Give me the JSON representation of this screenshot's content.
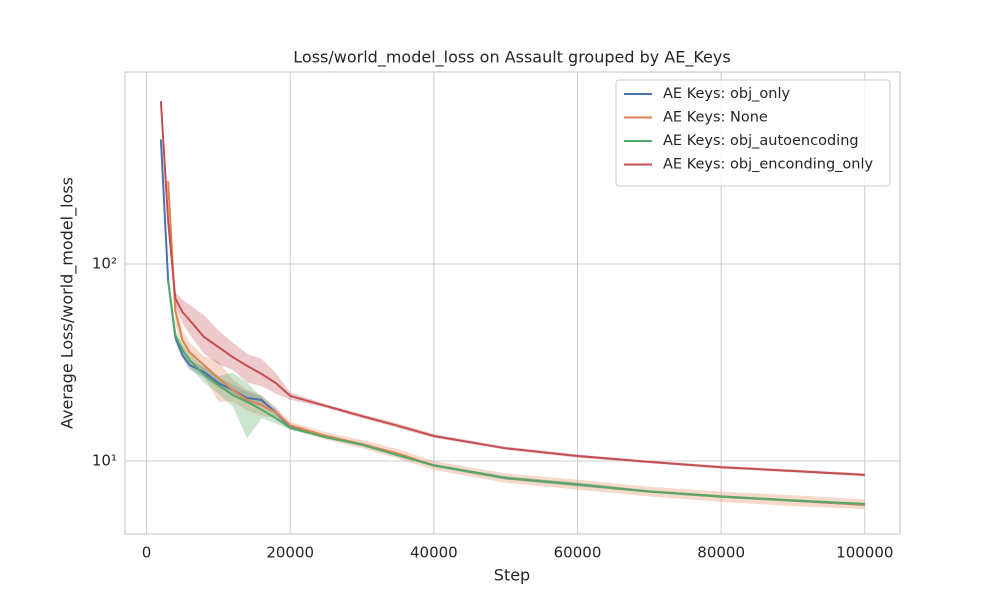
{
  "chart_data": {
    "type": "line",
    "title": "Loss/world_model_loss on Assault grouped by AE_Keys",
    "x_label": "Step",
    "y_label": "Average Loss/world_model_loss",
    "x": [
      2000,
      3000,
      4000,
      5000,
      6000,
      8000,
      10000,
      12000,
      14000,
      16000,
      18000,
      20000,
      25000,
      30000,
      35000,
      40000,
      50000,
      60000,
      70000,
      80000,
      90000,
      100000
    ],
    "xlim": [
      -3000,
      104900
    ],
    "xticks": [
      0,
      20000,
      40000,
      60000,
      80000,
      100000
    ],
    "ylim": [
      4.26,
      944
    ],
    "y_scale": "log",
    "yticks": [
      {
        "value": 10,
        "label": "10¹"
      },
      {
        "value": 100,
        "label": "10²"
      }
    ],
    "grid": true,
    "legend_position": "upper right",
    "band_opacity": 0.3,
    "series": [
      {
        "name": "AE Keys: obj_only",
        "color": "#4c72b0",
        "values": [
          430,
          83,
          42.5,
          34.5,
          30.7,
          28.3,
          24.9,
          22.9,
          20.9,
          20.4,
          17.7,
          14.8,
          13.3,
          12.1,
          10.8,
          9.5,
          8.2,
          7.6,
          7.0,
          6.6,
          6.3,
          6.0
        ],
        "lower": [
          430,
          80,
          40,
          33,
          29,
          26.5,
          23.5,
          21.5,
          19.5,
          19,
          17,
          14.5,
          13.1,
          11.9,
          10.6,
          9.35,
          8.05,
          7.45,
          6.9,
          6.5,
          6.2,
          5.9
        ],
        "upper": [
          430,
          86,
          45,
          36,
          32.5,
          30,
          26.5,
          24.5,
          22.5,
          21.5,
          18.5,
          15.1,
          13.5,
          12.3,
          11,
          9.65,
          8.35,
          7.75,
          7.1,
          6.7,
          6.4,
          6.1
        ]
      },
      {
        "name": "AE Keys: None",
        "color": "#dd8452",
        "values": [
          null,
          264,
          58,
          41,
          35.7,
          30.7,
          26.4,
          22.9,
          20.4,
          19.2,
          17.7,
          15.2,
          13.4,
          12.2,
          10.9,
          9.5,
          8.2,
          7.6,
          7.0,
          6.6,
          6.3,
          6.0
        ],
        "lower": [
          null,
          250,
          50,
          36,
          31,
          27,
          20,
          20,
          18,
          17,
          16.5,
          14.6,
          12.8,
          11.6,
          10.3,
          9.0,
          7.75,
          7.15,
          6.6,
          6.2,
          5.9,
          5.7
        ],
        "upper": [
          null,
          280,
          66,
          46,
          40,
          34,
          32,
          26,
          23,
          21.5,
          18.8,
          15.8,
          14,
          12.8,
          11.5,
          10,
          8.65,
          8.05,
          7.4,
          7.0,
          6.7,
          6.4
        ]
      },
      {
        "name": "AE Keys: obj_autoencoding",
        "color": "#55a868",
        "values": [
          null,
          83,
          43.6,
          36.6,
          32.6,
          27.4,
          24.3,
          21.6,
          20,
          18.2,
          16.5,
          14.7,
          13.2,
          12.1,
          10.7,
          9.5,
          8.2,
          7.6,
          7.0,
          6.6,
          6.3,
          6.05
        ],
        "lower": [
          null,
          80,
          41,
          34,
          30,
          25,
          22,
          19,
          13,
          16.5,
          15.5,
          14.4,
          13,
          11.9,
          10.5,
          9.35,
          8.05,
          7.45,
          6.9,
          6.5,
          6.2,
          5.95
        ],
        "upper": [
          null,
          86,
          46,
          39,
          35,
          30,
          27,
          28,
          25,
          21,
          17.5,
          15,
          13.4,
          12.3,
          10.9,
          9.65,
          8.35,
          7.75,
          7.1,
          6.7,
          6.4,
          6.15
        ]
      },
      {
        "name": "AE Keys: obj_enconding_only",
        "color": "#c44e52",
        "values": [
          671,
          167,
          67,
          57,
          52,
          42.6,
          37.9,
          33.7,
          30.4,
          27.7,
          24.9,
          21.4,
          19.0,
          16.9,
          15.1,
          13.4,
          11.6,
          10.6,
          9.9,
          9.3,
          8.9,
          8.5
        ],
        "lower": [
          671,
          160,
          62,
          50,
          44,
          35,
          31,
          29,
          25,
          24,
          22,
          20.5,
          18.6,
          16.5,
          14.7,
          13.1,
          11.4,
          10.4,
          9.75,
          9.15,
          8.75,
          8.35
        ],
        "upper": [
          671,
          175,
          72,
          66,
          62,
          55,
          46,
          40,
          35,
          33,
          28,
          22.3,
          19.4,
          17.3,
          15.5,
          13.7,
          11.8,
          10.8,
          10.05,
          9.45,
          9.05,
          8.65
        ]
      }
    ]
  }
}
